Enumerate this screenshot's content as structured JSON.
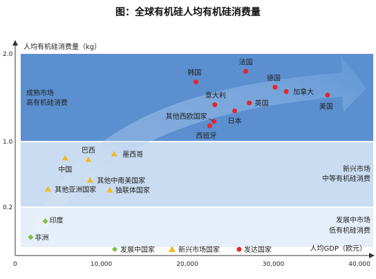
{
  "chart_data": {
    "type": "scatter",
    "title": "图：全球有机硅人均有机硅消费量",
    "ylabel": "人均有机硅消费量（kg）",
    "xlabel": "人均GDP（欧元）",
    "xlim": [
      0,
      40000
    ],
    "x_ticks": [
      {
        "value": 0,
        "label": "0"
      },
      {
        "value": 10000,
        "label": "10,000"
      },
      {
        "value": 20000,
        "label": "20,000"
      },
      {
        "value": 30000,
        "label": "30,000"
      },
      {
        "value": 40000,
        "label": "40,000"
      }
    ],
    "y_ticks": [
      {
        "value": 0.2,
        "label": "0.2"
      },
      {
        "value": 1.0,
        "label": "1.0"
      },
      {
        "value": 2.0,
        "label": "2.0"
      }
    ],
    "zones": [
      {
        "id": "mature",
        "y_range": [
          1.0,
          2.0
        ],
        "label_lines": [
          "成熟市场",
          "高有机硅消费"
        ],
        "color": "#5b8fcf"
      },
      {
        "id": "emerging",
        "y_range": [
          0.2,
          1.0
        ],
        "label_lines": [
          "新兴市场",
          "中等有机硅消费"
        ],
        "color": "#c9dcf1"
      },
      {
        "id": "developing",
        "y_range": [
          0.0,
          0.2
        ],
        "label_lines": [
          "发展中市场",
          "低有机硅消费"
        ],
        "color": "#e6eff9"
      }
    ],
    "series": [
      {
        "name": "发展中国家",
        "marker": "diamond",
        "color": "#7ac143",
        "points": [
          {
            "label": "印度",
            "x": 3500,
            "y": 0.13
          },
          {
            "label": "非洲",
            "x": 1800,
            "y": 0.05
          }
        ]
      },
      {
        "name": "新兴市场国家",
        "marker": "triangle",
        "color": "#f5b820",
        "points": [
          {
            "label": "巴西",
            "x": 8500,
            "y": 0.78
          },
          {
            "label": "墨西哥",
            "x": 11500,
            "y": 0.85
          },
          {
            "label": "中国",
            "x": 5800,
            "y": 0.8
          },
          {
            "label": "其他中南美国家",
            "x": 8700,
            "y": 0.53
          },
          {
            "label": "其他亚洲国家",
            "x": 3800,
            "y": 0.42
          },
          {
            "label": "独联体国家",
            "x": 11000,
            "y": 0.41
          }
        ]
      },
      {
        "name": "发达国家",
        "marker": "circle",
        "color": "#e3262b",
        "points": [
          {
            "label": "韩国",
            "x": 21000,
            "y": 1.68
          },
          {
            "label": "法国",
            "x": 26800,
            "y": 1.8
          },
          {
            "label": "德国",
            "x": 30200,
            "y": 1.62
          },
          {
            "label": "加拿大",
            "x": 31500,
            "y": 1.57
          },
          {
            "label": "美国",
            "x": 36300,
            "y": 1.53
          },
          {
            "label": "意大利",
            "x": 23200,
            "y": 1.42
          },
          {
            "label": "英国",
            "x": 27200,
            "y": 1.44
          },
          {
            "label": "日本",
            "x": 25500,
            "y": 1.35
          },
          {
            "label": "其他西欧国家",
            "x": 23100,
            "y": 1.23
          },
          {
            "label": "西班牙",
            "x": 22600,
            "y": 1.18
          }
        ]
      }
    ]
  }
}
